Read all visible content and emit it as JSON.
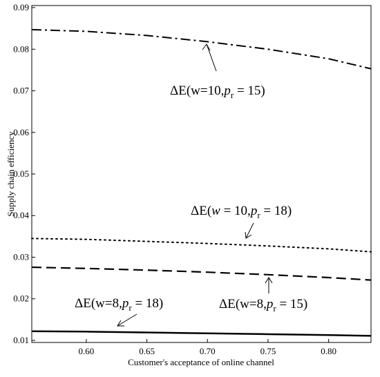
{
  "chart_data": {
    "type": "line",
    "title": "",
    "xlabel": "Customer's acceptance of online channel",
    "ylabel": "Supply chain efficiency",
    "xlim": [
      0.555,
      0.835
    ],
    "ylim": [
      0.0095,
      0.0905
    ],
    "x_ticks": [
      "0.60",
      "0.65",
      "0.70",
      "0.75",
      "0.80"
    ],
    "y_ticks": [
      "0.01",
      "0.02",
      "0.03",
      "0.04",
      "0.05",
      "0.06",
      "0.07",
      "0.08",
      "0.09"
    ],
    "grid": false,
    "series": [
      {
        "style": "dash-dot",
        "x": [
          0.555,
          0.6,
          0.65,
          0.7,
          0.75,
          0.8,
          0.835
        ],
        "y": [
          0.0847,
          0.0843,
          0.0833,
          0.0818,
          0.08,
          0.0777,
          0.0753
        ]
      },
      {
        "style": "dotted",
        "x": [
          0.555,
          0.6,
          0.65,
          0.7,
          0.75,
          0.8,
          0.835
        ],
        "y": [
          0.0345,
          0.0343,
          0.0338,
          0.0333,
          0.0327,
          0.032,
          0.0313
        ]
      },
      {
        "style": "dashed",
        "x": [
          0.555,
          0.6,
          0.65,
          0.7,
          0.75,
          0.8,
          0.835
        ],
        "y": [
          0.0276,
          0.0273,
          0.0269,
          0.0264,
          0.0258,
          0.0251,
          0.0245
        ]
      },
      {
        "style": "solid",
        "x": [
          0.555,
          0.6,
          0.65,
          0.7,
          0.75,
          0.8,
          0.835
        ],
        "y": [
          0.0122,
          0.0121,
          0.0119,
          0.0117,
          0.0115,
          0.0113,
          0.0111
        ]
      }
    ],
    "annotations": [
      {
        "id": "a1",
        "pre": "ΔE(w=10,",
        "p": "p",
        "sub": "r",
        "post": " = 15)",
        "pre_italic_w": false
      },
      {
        "id": "a2",
        "pre": "ΔE(",
        "w": "w",
        "mid": " = 10,",
        "p": "p",
        "sub": "r",
        "post": " = 18)"
      },
      {
        "id": "a3",
        "pre": "ΔE(w=8,",
        "p": "p",
        "sub": "r",
        "post": " = 18)"
      },
      {
        "id": "a4",
        "pre": "ΔE(w=8,",
        "p": "p",
        "sub": "r",
        "post": " = 15)"
      }
    ]
  }
}
